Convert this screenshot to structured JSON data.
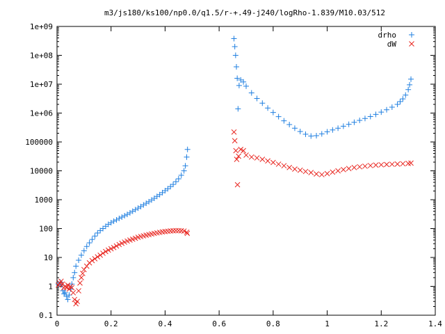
{
  "chart_data": {
    "type": "scatter",
    "title": "m3/js180/ks100/np0.0/q1.5/r-+.49-j240/logRho-1.839/M10.03/512",
    "xlabel": "",
    "ylabel": "",
    "xlim": [
      0,
      1.4
    ],
    "ylim": [
      0.1,
      1000000000
    ],
    "yscale": "log",
    "grid": false,
    "legend_position": "top-right",
    "x_ticks": [
      {
        "value": 0,
        "label": "0"
      },
      {
        "value": 0.2,
        "label": "0.2"
      },
      {
        "value": 0.4,
        "label": "0.4"
      },
      {
        "value": 0.6,
        "label": "0.6"
      },
      {
        "value": 0.8,
        "label": "0.8"
      },
      {
        "value": 1.0,
        "label": "1"
      },
      {
        "value": 1.2,
        "label": "1.2"
      },
      {
        "value": 1.4,
        "label": "1.4"
      }
    ],
    "y_ticks": [
      {
        "value": 0.1,
        "label": "0.1"
      },
      {
        "value": 1,
        "label": "1"
      },
      {
        "value": 10,
        "label": "10"
      },
      {
        "value": 100,
        "label": "100"
      },
      {
        "value": 1000,
        "label": "1000"
      },
      {
        "value": 10000,
        "label": "10000"
      },
      {
        "value": 100000,
        "label": "100000"
      },
      {
        "value": 1000000,
        "label": "1e+06"
      },
      {
        "value": 10000000,
        "label": "1e+07"
      },
      {
        "value": 100000000,
        "label": "1e+08"
      },
      {
        "value": 1000000000,
        "label": "1e+09"
      }
    ],
    "series": [
      {
        "name": "drho",
        "color": "#1f7fe0",
        "marker": "plus",
        "points": [
          [
            0.005,
            1.2
          ],
          [
            0.012,
            1.4
          ],
          [
            0.018,
            1.1
          ],
          [
            0.022,
            0.7
          ],
          [
            0.026,
            0.55
          ],
          [
            0.03,
            0.6
          ],
          [
            0.035,
            0.45
          ],
          [
            0.04,
            0.35
          ],
          [
            0.045,
            0.5
          ],
          [
            0.05,
            0.8
          ],
          [
            0.055,
            1.2
          ],
          [
            0.06,
            2
          ],
          [
            0.065,
            3
          ],
          [
            0.07,
            5
          ],
          [
            0.08,
            8
          ],
          [
            0.09,
            12
          ],
          [
            0.1,
            17
          ],
          [
            0.11,
            24
          ],
          [
            0.12,
            32
          ],
          [
            0.13,
            42
          ],
          [
            0.14,
            55
          ],
          [
            0.15,
            70
          ],
          [
            0.16,
            85
          ],
          [
            0.17,
            100
          ],
          [
            0.18,
            120
          ],
          [
            0.19,
            140
          ],
          [
            0.2,
            160
          ],
          [
            0.21,
            180
          ],
          [
            0.22,
            200
          ],
          [
            0.23,
            225
          ],
          [
            0.24,
            250
          ],
          [
            0.25,
            280
          ],
          [
            0.26,
            310
          ],
          [
            0.27,
            350
          ],
          [
            0.28,
            400
          ],
          [
            0.29,
            450
          ],
          [
            0.3,
            510
          ],
          [
            0.31,
            580
          ],
          [
            0.32,
            660
          ],
          [
            0.33,
            750
          ],
          [
            0.34,
            850
          ],
          [
            0.35,
            980
          ],
          [
            0.36,
            1120
          ],
          [
            0.37,
            1300
          ],
          [
            0.38,
            1500
          ],
          [
            0.39,
            1750
          ],
          [
            0.4,
            2050
          ],
          [
            0.41,
            2400
          ],
          [
            0.42,
            2850
          ],
          [
            0.43,
            3400
          ],
          [
            0.44,
            4200
          ],
          [
            0.45,
            5300
          ],
          [
            0.46,
            7000
          ],
          [
            0.47,
            10000
          ],
          [
            0.475,
            15000
          ],
          [
            0.48,
            30000
          ],
          [
            0.483,
            55000
          ],
          [
            0.655,
            380000000
          ],
          [
            0.658,
            200000000
          ],
          [
            0.661,
            100000000
          ],
          [
            0.664,
            40000000
          ],
          [
            0.667,
            16000000
          ],
          [
            0.67,
            1400000
          ],
          [
            0.674,
            9000000
          ],
          [
            0.68,
            14000000
          ],
          [
            0.69,
            12000000
          ],
          [
            0.7,
            8500000
          ],
          [
            0.72,
            5000000
          ],
          [
            0.74,
            3200000
          ],
          [
            0.76,
            2200000
          ],
          [
            0.78,
            1500000
          ],
          [
            0.8,
            1050000
          ],
          [
            0.82,
            750000
          ],
          [
            0.84,
            540000
          ],
          [
            0.86,
            400000
          ],
          [
            0.88,
            300000
          ],
          [
            0.9,
            230000
          ],
          [
            0.92,
            185000
          ],
          [
            0.94,
            160000
          ],
          [
            0.96,
            165000
          ],
          [
            0.98,
            190000
          ],
          [
            1.0,
            225000
          ],
          [
            1.02,
            260000
          ],
          [
            1.04,
            300000
          ],
          [
            1.06,
            350000
          ],
          [
            1.08,
            410000
          ],
          [
            1.1,
            480000
          ],
          [
            1.12,
            560000
          ],
          [
            1.14,
            650000
          ],
          [
            1.16,
            760000
          ],
          [
            1.18,
            900000
          ],
          [
            1.2,
            1080000
          ],
          [
            1.22,
            1300000
          ],
          [
            1.24,
            1600000
          ],
          [
            1.26,
            2000000
          ],
          [
            1.27,
            2500000
          ],
          [
            1.28,
            3100000
          ],
          [
            1.29,
            4200000
          ],
          [
            1.3,
            6500000
          ],
          [
            1.305,
            9500000
          ],
          [
            1.31,
            15000000
          ]
        ]
      },
      {
        "name": "dW",
        "color": "#e8251f",
        "marker": "x",
        "points": [
          [
            0.005,
            1.1
          ],
          [
            0.01,
            1.3
          ],
          [
            0.015,
            1.5
          ],
          [
            0.02,
            1.2
          ],
          [
            0.025,
            0.9
          ],
          [
            0.03,
            1.0
          ],
          [
            0.035,
            0.9
          ],
          [
            0.04,
            1.1
          ],
          [
            0.045,
            0.8
          ],
          [
            0.05,
            1.0
          ],
          [
            0.055,
            0.9
          ],
          [
            0.06,
            0.6
          ],
          [
            0.065,
            0.35
          ],
          [
            0.07,
            0.25
          ],
          [
            0.075,
            0.3
          ],
          [
            0.08,
            0.7
          ],
          [
            0.085,
            1.3
          ],
          [
            0.09,
            2
          ],
          [
            0.095,
            2.8
          ],
          [
            0.1,
            3.8
          ],
          [
            0.11,
            5
          ],
          [
            0.12,
            6.5
          ],
          [
            0.13,
            7.8
          ],
          [
            0.14,
            9
          ],
          [
            0.15,
            10.5
          ],
          [
            0.16,
            12
          ],
          [
            0.17,
            14
          ],
          [
            0.18,
            16
          ],
          [
            0.19,
            18
          ],
          [
            0.2,
            20
          ],
          [
            0.21,
            22
          ],
          [
            0.22,
            25
          ],
          [
            0.23,
            28
          ],
          [
            0.24,
            31
          ],
          [
            0.25,
            34
          ],
          [
            0.26,
            37
          ],
          [
            0.27,
            40
          ],
          [
            0.28,
            43
          ],
          [
            0.29,
            46
          ],
          [
            0.3,
            50
          ],
          [
            0.31,
            53
          ],
          [
            0.32,
            56
          ],
          [
            0.33,
            59
          ],
          [
            0.34,
            62
          ],
          [
            0.35,
            65
          ],
          [
            0.36,
            68
          ],
          [
            0.37,
            71
          ],
          [
            0.38,
            74
          ],
          [
            0.39,
            77
          ],
          [
            0.4,
            79
          ],
          [
            0.41,
            81
          ],
          [
            0.42,
            83
          ],
          [
            0.43,
            84
          ],
          [
            0.44,
            85
          ],
          [
            0.45,
            85
          ],
          [
            0.46,
            84
          ],
          [
            0.47,
            82
          ],
          [
            0.48,
            75
          ],
          [
            0.482,
            68
          ],
          [
            0.655,
            220000
          ],
          [
            0.658,
            110000
          ],
          [
            0.662,
            50000
          ],
          [
            0.665,
            25000
          ],
          [
            0.668,
            3300
          ],
          [
            0.672,
            32000
          ],
          [
            0.68,
            55000
          ],
          [
            0.69,
            50000
          ],
          [
            0.7,
            35000
          ],
          [
            0.72,
            30000
          ],
          [
            0.74,
            28000
          ],
          [
            0.76,
            25000
          ],
          [
            0.78,
            22000
          ],
          [
            0.8,
            19500
          ],
          [
            0.82,
            17000
          ],
          [
            0.84,
            15000
          ],
          [
            0.86,
            13000
          ],
          [
            0.88,
            11500
          ],
          [
            0.9,
            10500
          ],
          [
            0.92,
            9500
          ],
          [
            0.94,
            8700
          ],
          [
            0.96,
            7800
          ],
          [
            0.98,
            7400
          ],
          [
            1.0,
            8000
          ],
          [
            1.02,
            9000
          ],
          [
            1.04,
            10000
          ],
          [
            1.06,
            11000
          ],
          [
            1.08,
            12000
          ],
          [
            1.1,
            13000
          ],
          [
            1.12,
            13800
          ],
          [
            1.14,
            14500
          ],
          [
            1.16,
            15200
          ],
          [
            1.18,
            15800
          ],
          [
            1.2,
            16200
          ],
          [
            1.22,
            16600
          ],
          [
            1.24,
            16900
          ],
          [
            1.26,
            17200
          ],
          [
            1.28,
            17600
          ],
          [
            1.3,
            18000
          ],
          [
            1.31,
            18500
          ]
        ]
      }
    ]
  }
}
